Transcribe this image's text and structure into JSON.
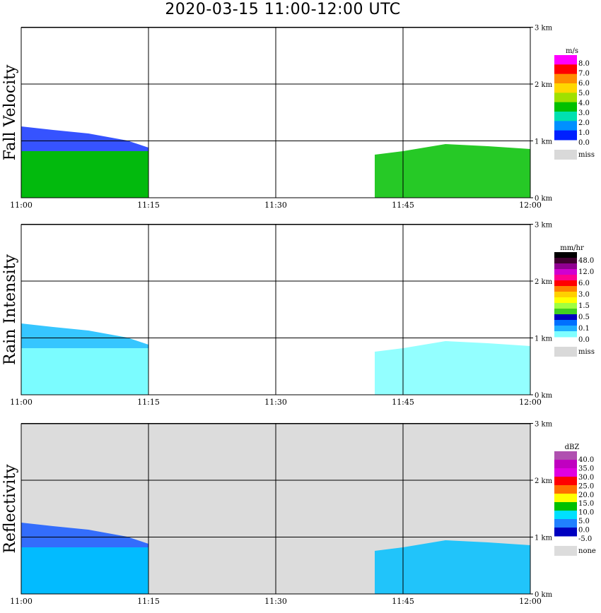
{
  "title": "2020-03-15   11:00-12:00 UTC",
  "chart_data": [
    {
      "type": "heatmap",
      "ylabel": "Fall Velocity",
      "xticks": [
        "11:00",
        "11:15",
        "11:30",
        "11:45",
        "12:00"
      ],
      "yticks": [
        "0 km",
        "1 km",
        "2 km",
        "3 km"
      ],
      "ylim": [
        0,
        3.1
      ],
      "grid": true,
      "background": "#ffffff",
      "legend": {
        "unit": "m/s",
        "labels": [
          "8.0",
          "7.0",
          "6.0",
          "5.0",
          "4.0",
          "3.0",
          "2.0",
          "1.0",
          "0.0"
        ],
        "colors": [
          "#ff00ff",
          "#ff0000",
          "#ff8c00",
          "#ffd700",
          "#a0e000",
          "#00c000",
          "#00e0b0",
          "#0090ff",
          "#0020ff"
        ],
        "missing_label": "miss",
        "missing_color": "#d9d9d9"
      }
    },
    {
      "type": "heatmap",
      "ylabel": "Rain Intensity",
      "xticks": [
        "11:00",
        "11:15",
        "11:30",
        "11:45",
        "12:00"
      ],
      "yticks": [
        "0 km",
        "1 km",
        "2 km",
        "3 km"
      ],
      "ylim": [
        0,
        3.1
      ],
      "grid": true,
      "background": "#ffffff",
      "legend": {
        "unit": "mm/hr",
        "labels": [
          "48.0",
          "12.0",
          "6.0",
          "3.0",
          "1.5",
          "0.5",
          "0.1",
          "0.0"
        ],
        "colors": [
          "#000000",
          "#400030",
          "#900090",
          "#d000d0",
          "#ff0090",
          "#ff0000",
          "#ff8000",
          "#ffd000",
          "#ffff00",
          "#a0ff40",
          "#40d020",
          "#0000c0",
          "#0070ff",
          "#20b0ff",
          "#80ffff"
        ],
        "missing_label": "miss",
        "missing_color": "#d9d9d9"
      }
    },
    {
      "type": "heatmap",
      "ylabel": "Reflectivity",
      "xticks": [
        "11:00",
        "11:15",
        "11:30",
        "11:45",
        "12:00"
      ],
      "yticks": [
        "0 km",
        "1 km",
        "2 km",
        "3 km"
      ],
      "ylim": [
        0,
        3.1
      ],
      "grid": true,
      "background": "#dcdcdc",
      "legend": {
        "unit": "dBZ",
        "labels": [
          "40.0",
          "35.0",
          "30.0",
          "25.0",
          "20.0",
          "15.0",
          "10.0",
          "5.0",
          "0.0",
          "-5.0"
        ],
        "colors": [
          "#b050b0",
          "#c000c0",
          "#e000e0",
          "#ff0000",
          "#ff7000",
          "#ffff00",
          "#00c000",
          "#00e0ff",
          "#2080ff",
          "#0000c0"
        ],
        "missing_label": "none",
        "missing_color": "#dcdcdc"
      }
    }
  ]
}
